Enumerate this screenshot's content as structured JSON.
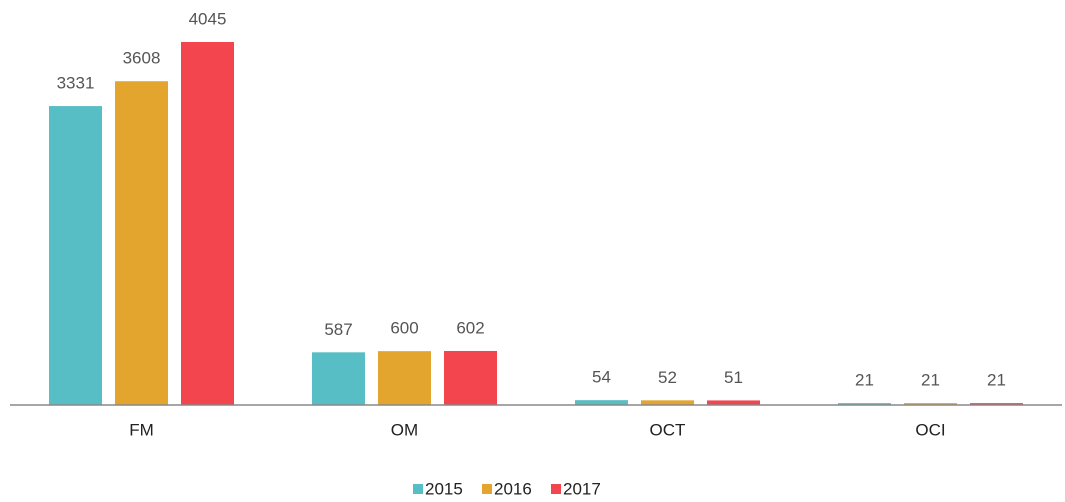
{
  "chart_data": {
    "type": "bar",
    "categories": [
      "FM",
      "OM",
      "OCT",
      "OCI"
    ],
    "series": [
      {
        "name": "2015",
        "color": "#56bec4",
        "values": [
          3331,
          587,
          54,
          21
        ]
      },
      {
        "name": "2016",
        "color": "#e3a52e",
        "values": [
          3608,
          600,
          52,
          21
        ]
      },
      {
        "name": "2017",
        "color": "#f2454e",
        "values": [
          4045,
          602,
          51,
          21
        ]
      }
    ]
  }
}
